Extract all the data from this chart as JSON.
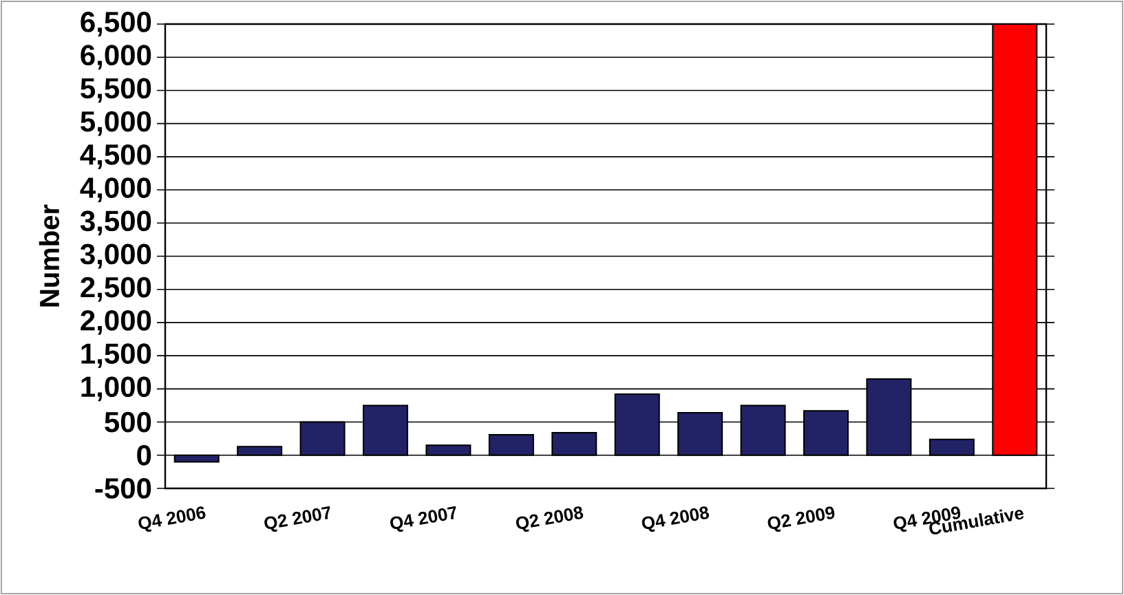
{
  "chart_data": {
    "type": "bar",
    "ylabel": "Number",
    "categories": [
      "Q4 2006",
      null,
      "Q2 2007",
      null,
      "Q4 2007",
      null,
      "Q2 2008",
      null,
      "Q4 2008",
      null,
      "Q2 2009",
      null,
      "Q4 2009",
      "Cumulative"
    ],
    "values": [
      -100,
      130,
      500,
      750,
      150,
      310,
      340,
      920,
      640,
      750,
      670,
      1150,
      240,
      6500
    ],
    "colors": [
      "#222266",
      "#222266",
      "#222266",
      "#222266",
      "#222266",
      "#222266",
      "#222266",
      "#222266",
      "#222266",
      "#222266",
      "#222266",
      "#222266",
      "#222266",
      "#ff0000"
    ],
    "ylim": [
      -500,
      6500
    ],
    "yticks": [
      -500,
      0,
      500,
      {
        "value": 1000,
        "label": "1,000"
      },
      {
        "value": 1500,
        "label": "1,500"
      },
      {
        "value": 2000,
        "label": "2,000"
      },
      {
        "value": 2500,
        "label": "2,500"
      },
      {
        "value": 3000,
        "label": "3,000"
      },
      {
        "value": 3500,
        "label": "3,500"
      },
      {
        "value": 4000,
        "label": "4,000"
      },
      {
        "value": 4500,
        "label": "4,500"
      },
      {
        "value": 5000,
        "label": "5,000"
      },
      {
        "value": 5500,
        "label": "5,500"
      },
      {
        "value": 6000,
        "label": "6,000"
      },
      {
        "value": 6500,
        "label": "6,500"
      }
    ],
    "grid": "y"
  }
}
